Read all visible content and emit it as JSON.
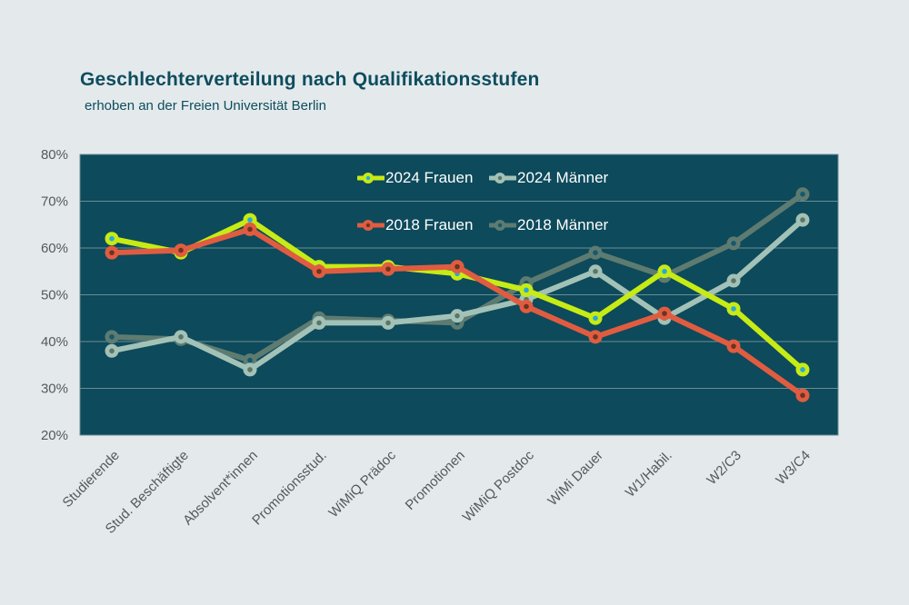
{
  "header": {
    "title": "Geschlechterverteilung nach Qualifikationsstufen",
    "subtitle": "erhoben an der Freien Universität Berlin"
  },
  "chart_data": {
    "type": "line",
    "title": "Geschlechterverteilung nach Qualifikationsstufen",
    "subtitle": "erhoben an der Freien Universität Berlin",
    "categories": [
      "Studierende",
      "Stud. Beschäftigte",
      "Absolvent*innen",
      "Promotionsstud.",
      "WiMiQ Prädoc",
      "Promotionen",
      "WiMiQ Postdoc",
      "WiMi Dauer",
      "W1/Habil.",
      "W2/C3",
      "W3/C4"
    ],
    "series": [
      {
        "name": "2024 Frauen",
        "color": "#c7eb15",
        "center_color": "#29a8d8",
        "values": [
          62,
          59,
          66,
          56,
          56,
          54.5,
          51,
          45,
          55,
          47,
          34
        ]
      },
      {
        "name": "2024 Männer",
        "color": "#a3c2b7",
        "center_color": "#5d7565",
        "values": [
          38,
          41,
          34,
          44,
          44,
          45.5,
          49,
          55,
          45,
          53,
          66
        ]
      },
      {
        "name": "2018 Frauen",
        "color": "#e05c41",
        "center_color": "#6b3420",
        "values": [
          59,
          59.5,
          64,
          55,
          55.5,
          56,
          47.5,
          41,
          46,
          39,
          28.5
        ]
      },
      {
        "name": "2018 Männer",
        "color": "#5e7b71",
        "center_color": "#14596e",
        "values": [
          41,
          40.5,
          36,
          45,
          44.5,
          44,
          52.5,
          59,
          54,
          61,
          71.5
        ]
      }
    ],
    "z_order": [
      3,
      1,
      0,
      2
    ],
    "ylim": [
      20,
      80
    ],
    "yticks": [
      80,
      70,
      60,
      50,
      40,
      30,
      20
    ],
    "ytick_suffix": "%",
    "grid": true,
    "legend_position": "inside-top-center",
    "colors": {
      "page_bg": "#e4eaec",
      "plot_bg": "#0d4a5b",
      "grid": "#6b8d96",
      "title_text": "#0e4d5e",
      "axis_text": "#54595c",
      "legend_text": "#ffffff"
    }
  }
}
